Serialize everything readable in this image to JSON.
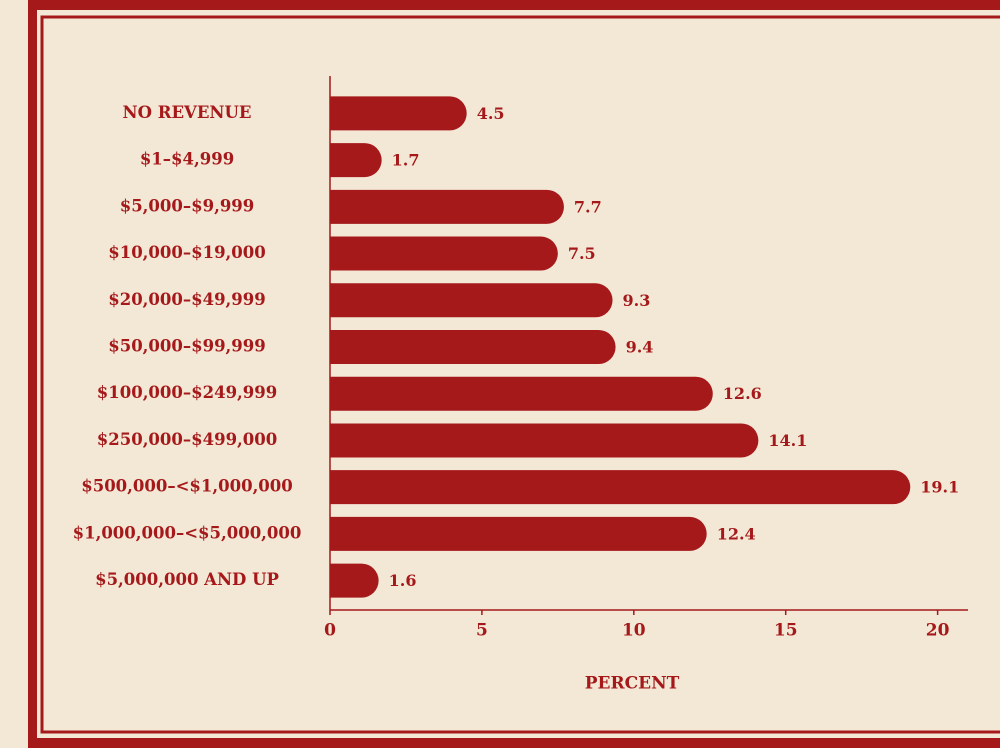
{
  "chart_data": {
    "type": "bar",
    "orientation": "horizontal",
    "x_label": "PERCENT",
    "categories": [
      "NO REVENUE",
      "$1–$4,999",
      "$5,000–$9,999",
      "$10,000–$19,000",
      "$20,000–$49,999",
      "$50,000–$99,999",
      "$100,000–$249,999",
      "$250,000–$499,000",
      "$500,000–<$1,000,000",
      "$1,000,000–<$5,000,000",
      "$5,000,000 AND UP"
    ],
    "values": [
      4.5,
      1.7,
      7.7,
      7.5,
      9.3,
      9.4,
      12.6,
      14.1,
      19.1,
      12.4,
      1.6
    ],
    "color": "#a5191a",
    "xlim": [
      0,
      21
    ],
    "xticks": [
      0,
      5,
      10,
      15,
      20
    ],
    "grid": false
  }
}
